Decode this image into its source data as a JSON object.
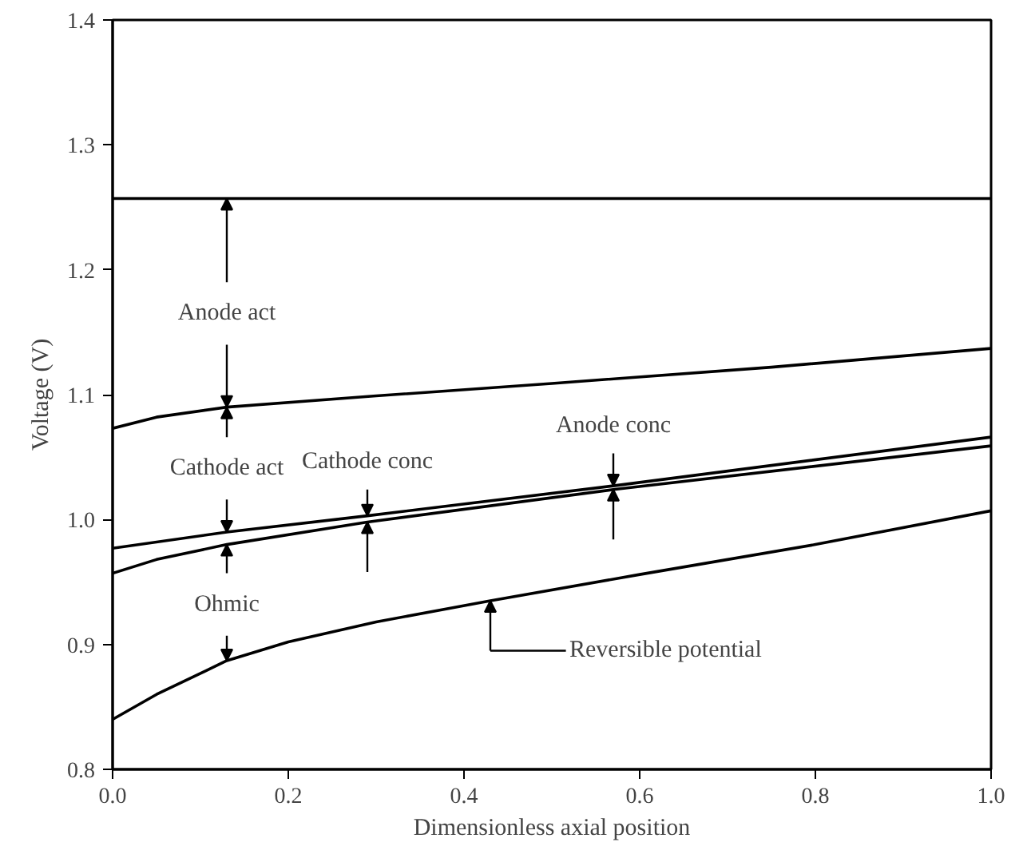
{
  "chart_data": {
    "type": "line",
    "xlabel": "Dimensionless axial position",
    "ylabel": "Voltage (V)",
    "xlim": [
      0,
      1
    ],
    "ylim": [
      0.8,
      1.4
    ],
    "xticks": [
      {
        "value": 0,
        "label": "0.0"
      },
      0.2,
      0.4,
      0.6,
      0.8,
      {
        "value": 1,
        "label": "1.0"
      }
    ],
    "yticks": [
      0.8,
      0.9,
      {
        "value": 1,
        "label": "1.0"
      },
      1.1,
      1.2,
      1.3,
      1.4
    ],
    "grid": false,
    "marker": "none",
    "line_style": "solid",
    "series": [
      {
        "color": "#000000",
        "x": [
          0,
          1
        ],
        "values": [
          1.257,
          1.257
        ]
      },
      {
        "color": "#000000",
        "x": [
          0,
          0.05,
          0.13,
          0.3,
          0.5,
          0.75,
          1.0
        ],
        "values": [
          1.073,
          1.082,
          1.09,
          1.099,
          1.109,
          1.122,
          1.137
        ]
      },
      {
        "color": "#000000",
        "x": [
          0,
          0.13,
          0.29,
          0.57,
          1.0
        ],
        "values": [
          0.977,
          0.99,
          1.003,
          1.027,
          1.066
        ]
      },
      {
        "color": "#000000",
        "x": [
          0,
          0.05,
          0.13,
          0.29,
          0.57,
          1.0
        ],
        "values": [
          0.957,
          0.968,
          0.98,
          0.998,
          1.024,
          1.059
        ]
      },
      {
        "color": "#000000",
        "x": [
          0,
          0.05,
          0.13,
          0.2,
          0.3,
          0.43,
          0.6,
          0.8,
          1.0
        ],
        "values": [
          0.84,
          0.86,
          0.887,
          0.902,
          0.918,
          0.935,
          0.956,
          0.98,
          1.007
        ]
      }
    ],
    "annotations": [
      {
        "text": "Anode act",
        "x": 0.13,
        "y": 1.257
      },
      {
        "text": "Cathode act",
        "x": 0.13,
        "y": 0.99
      },
      {
        "text": "Ohmic",
        "x": 0.13,
        "y": 0.887
      },
      {
        "text": "Cathode conc",
        "x": 0.29,
        "y": 1.003
      },
      {
        "text": "Anode conc",
        "x": 0.57,
        "y": 1.027
      },
      "Reversible potential"
    ]
  }
}
